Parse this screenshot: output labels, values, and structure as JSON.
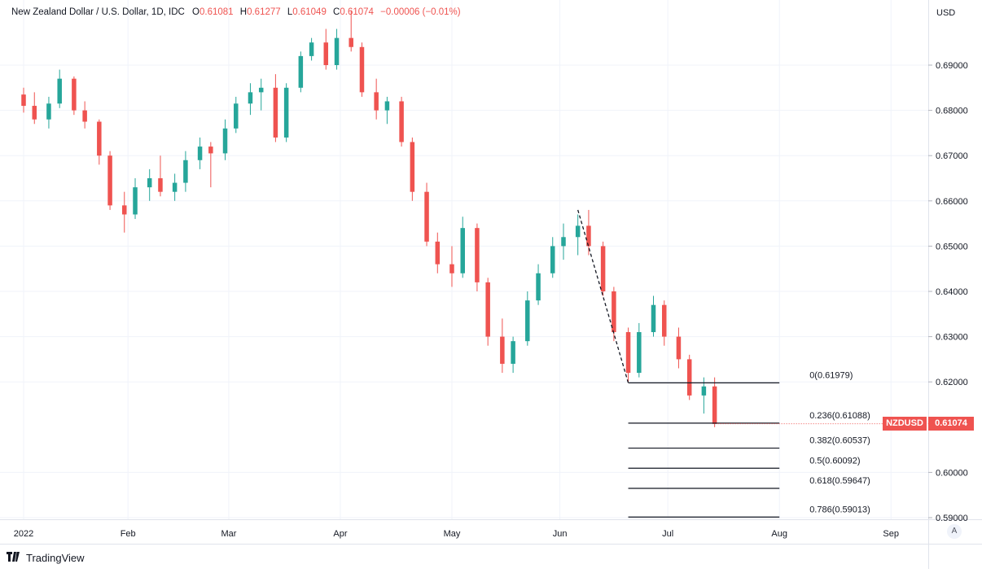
{
  "legend": {
    "symbol_desc": "New Zealand Dollar / U.S. Dollar, 1D, IDC",
    "o_label": "O",
    "o_value": "0.61081",
    "h_label": "H",
    "h_value": "0.61277",
    "l_label": "L",
    "l_value": "0.61049",
    "c_label": "C",
    "c_value": "0.61074",
    "change": "−0.00006 (−0.01%)"
  },
  "price_axis": {
    "currency": "USD"
  },
  "price_tag": {
    "symbol": "NZDUSD",
    "value": "0.61074",
    "color": "#ef5350"
  },
  "auto_scale_label": "A",
  "brand": {
    "icon": "tradingview-logo-icon",
    "name": "TradingView"
  },
  "colors": {
    "up": "#26a69a",
    "down": "#ef5350",
    "grid": "#f0f3fa",
    "axis_line": "#e0e3eb"
  },
  "chart_data": {
    "type": "candlestick",
    "symbol": "NZDUSD",
    "interval": "1D",
    "ylim": [
      0.5865,
      0.703
    ],
    "date_range": [
      "2022-01-01",
      "2022-09-20"
    ],
    "y_ticks": [
      "0.69000",
      "0.68000",
      "0.67000",
      "0.66000",
      "0.65000",
      "0.64000",
      "0.63000",
      "0.62000",
      "0.60000",
      "0.59000"
    ],
    "x_ticks": [
      {
        "label": "2022",
        "date": "2022-01-03"
      },
      {
        "label": "Feb",
        "date": "2022-02-01"
      },
      {
        "label": "Mar",
        "date": "2022-03-01"
      },
      {
        "label": "Apr",
        "date": "2022-04-01"
      },
      {
        "label": "May",
        "date": "2022-05-02"
      },
      {
        "label": "Jun",
        "date": "2022-06-01"
      },
      {
        "label": "Jul",
        "date": "2022-07-01"
      },
      {
        "label": "Aug",
        "date": "2022-08-01"
      },
      {
        "label": "Sep",
        "date": "2022-09-01"
      }
    ],
    "ohlc": [
      [
        "2022-01-03",
        0.6835,
        0.685,
        0.6795,
        0.681
      ],
      [
        "2022-01-06",
        0.681,
        0.684,
        0.677,
        0.678
      ],
      [
        "2022-01-10",
        0.678,
        0.683,
        0.676,
        0.6815
      ],
      [
        "2022-01-13",
        0.6815,
        0.689,
        0.6805,
        0.687
      ],
      [
        "2022-01-17",
        0.687,
        0.6875,
        0.679,
        0.68
      ],
      [
        "2022-01-20",
        0.68,
        0.682,
        0.676,
        0.6775
      ],
      [
        "2022-01-24",
        0.6775,
        0.678,
        0.668,
        0.67
      ],
      [
        "2022-01-27",
        0.67,
        0.671,
        0.658,
        0.659
      ],
      [
        "2022-01-31",
        0.659,
        0.662,
        0.653,
        0.657
      ],
      [
        "2022-02-03",
        0.657,
        0.665,
        0.656,
        0.663
      ],
      [
        "2022-02-07",
        0.663,
        0.667,
        0.66,
        0.665
      ],
      [
        "2022-02-10",
        0.665,
        0.67,
        0.661,
        0.662
      ],
      [
        "2022-02-14",
        0.662,
        0.666,
        0.66,
        0.664
      ],
      [
        "2022-02-17",
        0.664,
        0.671,
        0.662,
        0.669
      ],
      [
        "2022-02-21",
        0.669,
        0.674,
        0.667,
        0.672
      ],
      [
        "2022-02-24",
        0.672,
        0.673,
        0.663,
        0.6705
      ],
      [
        "2022-02-28",
        0.6705,
        0.678,
        0.669,
        0.676
      ],
      [
        "2022-03-03",
        0.676,
        0.683,
        0.675,
        0.6815
      ],
      [
        "2022-03-07",
        0.6815,
        0.686,
        0.679,
        0.684
      ],
      [
        "2022-03-10",
        0.684,
        0.687,
        0.68,
        0.685
      ],
      [
        "2022-03-14",
        0.685,
        0.688,
        0.673,
        0.674
      ],
      [
        "2022-03-17",
        0.674,
        0.686,
        0.673,
        0.685
      ],
      [
        "2022-03-21",
        0.685,
        0.693,
        0.684,
        0.692
      ],
      [
        "2022-03-24",
        0.692,
        0.696,
        0.691,
        0.695
      ],
      [
        "2022-03-28",
        0.695,
        0.698,
        0.689,
        0.69
      ],
      [
        "2022-03-31",
        0.69,
        0.698,
        0.689,
        0.696
      ],
      [
        "2022-04-04",
        0.696,
        0.702,
        0.693,
        0.694
      ],
      [
        "2022-04-07",
        0.694,
        0.695,
        0.683,
        0.684
      ],
      [
        "2022-04-11",
        0.684,
        0.687,
        0.678,
        0.68
      ],
      [
        "2022-04-14",
        0.68,
        0.683,
        0.677,
        0.682
      ],
      [
        "2022-04-18",
        0.682,
        0.683,
        0.672,
        0.673
      ],
      [
        "2022-04-21",
        0.673,
        0.674,
        0.66,
        0.662
      ],
      [
        "2022-04-25",
        0.662,
        0.664,
        0.65,
        0.651
      ],
      [
        "2022-04-28",
        0.651,
        0.653,
        0.644,
        0.646
      ],
      [
        "2022-05-02",
        0.646,
        0.65,
        0.641,
        0.644
      ],
      [
        "2022-05-05",
        0.644,
        0.6565,
        0.643,
        0.654
      ],
      [
        "2022-05-09",
        0.654,
        0.655,
        0.64,
        0.642
      ],
      [
        "2022-05-12",
        0.642,
        0.643,
        0.628,
        0.63
      ],
      [
        "2022-05-16",
        0.63,
        0.634,
        0.622,
        0.624
      ],
      [
        "2022-05-19",
        0.624,
        0.63,
        0.622,
        0.629
      ],
      [
        "2022-05-23",
        0.629,
        0.64,
        0.628,
        0.638
      ],
      [
        "2022-05-26",
        0.638,
        0.646,
        0.637,
        0.644
      ],
      [
        "2022-05-30",
        0.644,
        0.652,
        0.643,
        0.65
      ],
      [
        "2022-06-02",
        0.65,
        0.655,
        0.647,
        0.652
      ],
      [
        "2022-06-06",
        0.652,
        0.657,
        0.648,
        0.6545
      ],
      [
        "2022-06-09",
        0.6545,
        0.658,
        0.648,
        0.65
      ],
      [
        "2022-06-13",
        0.65,
        0.651,
        0.639,
        0.64
      ],
      [
        "2022-06-16",
        0.64,
        0.641,
        0.629,
        0.631
      ],
      [
        "2022-06-20",
        0.631,
        0.632,
        0.62,
        0.622
      ],
      [
        "2022-06-23",
        0.622,
        0.633,
        0.621,
        0.631
      ],
      [
        "2022-06-27",
        0.631,
        0.639,
        0.63,
        0.637
      ],
      [
        "2022-06-30",
        0.637,
        0.638,
        0.628,
        0.63
      ],
      [
        "2022-07-04",
        0.63,
        0.632,
        0.623,
        0.625
      ],
      [
        "2022-07-07",
        0.625,
        0.626,
        0.616,
        0.617
      ],
      [
        "2022-07-11",
        0.617,
        0.621,
        0.613,
        0.619
      ],
      [
        "2022-07-14",
        0.619,
        0.621,
        0.61,
        0.6107
      ]
    ],
    "fibonacci": {
      "levels": [
        {
          "ratio": "0",
          "value": "0.61979",
          "label": "0(0.61979)"
        },
        {
          "ratio": "0.236",
          "value": "0.61088",
          "label": "0.236(0.61088)"
        },
        {
          "ratio": "0.382",
          "value": "0.60537",
          "label": "0.382(0.60537)"
        },
        {
          "ratio": "0.5",
          "value": "0.60092",
          "label": "0.5(0.60092)"
        },
        {
          "ratio": "0.618",
          "value": "0.59647",
          "label": "0.618(0.59647)"
        },
        {
          "ratio": "0.786",
          "value": "0.59013",
          "label": "0.786(0.59013)"
        }
      ],
      "start_date": "2022-06-20",
      "end_date": "2022-08-01",
      "trend_line": {
        "from": [
          "2022-06-06",
          0.658
        ],
        "to": [
          "2022-06-20",
          0.61979
        ]
      }
    },
    "last_price": 0.61074
  }
}
